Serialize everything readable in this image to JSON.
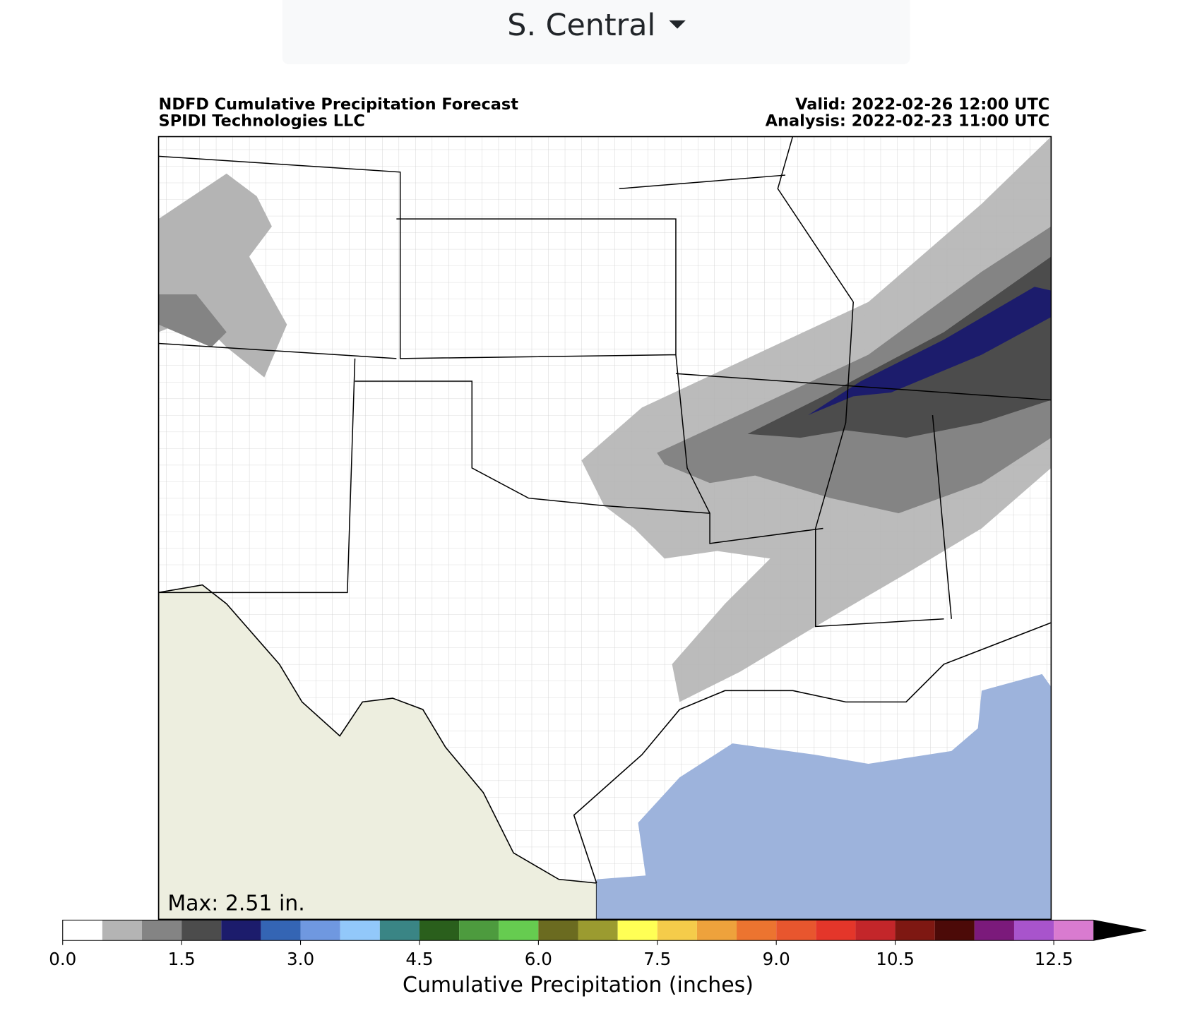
{
  "dropdown": {
    "label": "S. Central"
  },
  "map": {
    "title_left": [
      "NDFD Cumulative Precipitation Forecast",
      "SPIDI Technologies LLC"
    ],
    "title_right": [
      "Valid: 2022-02-26 12:00 UTC",
      "Analysis: 2022-02-23 11:00 UTC"
    ],
    "annotation": "Max: 2.51 in."
  },
  "chart_data": {
    "type": "colorbar",
    "xlabel": "Cumulative Precipitation (inches)",
    "bins": [
      0,
      0.5,
      1,
      1.5,
      2,
      2.5,
      3,
      3.5,
      4,
      4.5,
      5,
      5.5,
      6,
      6.5,
      7,
      7.5,
      8,
      8.5,
      9,
      9.5,
      10,
      10.5,
      11,
      11.5,
      12,
      12.5,
      13
    ],
    "colors": [
      "#ffffff",
      "#b4b4b4",
      "#848484",
      "#4c4c4c",
      "#1c1c6c",
      "#3465b4",
      "#6f98e0",
      "#92c8fa",
      "#3a8585",
      "#2a5f1c",
      "#4d9b3e",
      "#66cc50",
      "#6b6b20",
      "#9b9b30",
      "#ffff55",
      "#f5cc4a",
      "#eea23c",
      "#ec7430",
      "#e8562e",
      "#e4362a",
      "#c3262a",
      "#7e1812",
      "#4c0a08",
      "#7b1a7b",
      "#a854cc",
      "#d97bd0"
    ],
    "extend_color": "#000000",
    "xlim": [
      0,
      13
    ],
    "xticks": [
      {
        "value": 0,
        "label": "0.0"
      },
      1.5,
      {
        "value": 3,
        "label": "3.0"
      },
      4.5,
      {
        "value": 6,
        "label": "6.0"
      },
      7.5,
      {
        "value": 9,
        "label": "9.0"
      },
      10.5,
      12.5
    ]
  }
}
